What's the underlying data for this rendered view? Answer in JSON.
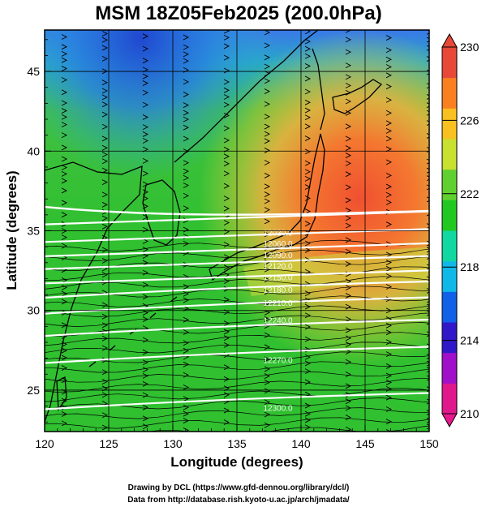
{
  "title": "MSM 18Z05Feb2025 (200.0hPa)",
  "xlabel": "Longitude (degrees)",
  "ylabel": "Latitude  (degrees)",
  "x_ticks": [
    "120",
    "125",
    "130",
    "135",
    "140",
    "145",
    "150"
  ],
  "y_ticks": [
    "25",
    "30",
    "35",
    "40",
    "45"
  ],
  "colorbar": {
    "ticks": [
      "230",
      "226",
      "222",
      "218",
      "214",
      "210"
    ],
    "colors": [
      "#e0188c",
      "#a010c8",
      "#3018c8",
      "#1060e8",
      "#10b8e8",
      "#10d8a0",
      "#20c820",
      "#60d030",
      "#c8e030",
      "#f8c020",
      "#f88020",
      "#e84838"
    ]
  },
  "contour_labels": [
    {
      "lat": 34.9,
      "text": "12030.0"
    },
    {
      "lat": 34.2,
      "text": "12060.0"
    },
    {
      "lat": 33.5,
      "text": "12090.0"
    },
    {
      "lat": 32.8,
      "text": "12120.0"
    },
    {
      "lat": 32.1,
      "text": "12150.0"
    },
    {
      "lat": 31.3,
      "text": "12180.0"
    },
    {
      "lat": 30.5,
      "text": "12210.0"
    },
    {
      "lat": 29.4,
      "text": "12240.0"
    },
    {
      "lat": 26.9,
      "text": "12270.0"
    },
    {
      "lat": 23.9,
      "text": "12300.0"
    }
  ],
  "credits": [
    "Drawing by DCL (https://www.gfd-dennou.org/library/dcl/)",
    "Data from http://database.rish.kyoto-u.ac.jp/arch/jmadata/"
  ],
  "chart_data": {
    "type": "heatmap",
    "title": "MSM 18Z05Feb2025 (200.0hPa)",
    "xlabel": "Longitude (degrees)",
    "ylabel": "Latitude  (degrees)",
    "xlim": [
      120,
      150
    ],
    "ylim": [
      22.4,
      47.6
    ],
    "colorbar_range": [
      210,
      230
    ],
    "overlays": [
      "streamlines (wind vectors)",
      "geopotential height contours (white)",
      "coastlines"
    ]
  }
}
